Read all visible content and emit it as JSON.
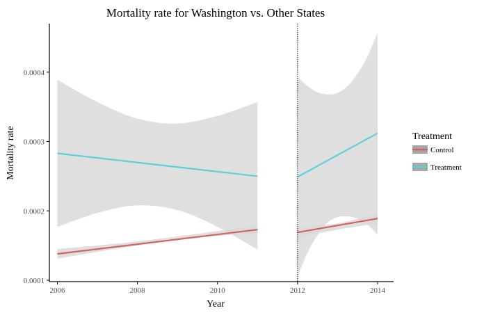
{
  "chart_data": {
    "type": "line",
    "title": "Mortality rate for Washington vs. Other States",
    "xlabel": "Year",
    "ylabel": "Mortality rate",
    "xlim": [
      2005.8,
      2014.4
    ],
    "ylim": [
      9.8e-05,
      0.00047
    ],
    "x_ticks": [
      2006,
      2008,
      2010,
      2012,
      2014
    ],
    "x_tick_labels": [
      "2006",
      "2008",
      "2010",
      "2012",
      "2014"
    ],
    "y_ticks": [
      0.0001,
      0.0002,
      0.0003,
      0.0004
    ],
    "y_tick_labels": [
      "0.0001",
      "0.0002",
      "0.0003",
      "0.0004"
    ],
    "vline_x": 2012,
    "grid": false,
    "legend": {
      "title": "Treatment",
      "position": "right",
      "entries": [
        "Control",
        "Treatment"
      ]
    },
    "series": [
      {
        "name": "Control",
        "color": "#d4635e",
        "segments": [
          {
            "x": [
              2006,
              2011
            ],
            "y": [
              0.000138,
              0.000173
            ],
            "band_x": [
              2006,
              2008,
              2010,
              2011
            ],
            "band_lower": [
              0.000131,
              0.00015,
              0.000164,
              0.000167
            ],
            "band_upper": [
              0.000145,
              0.000156,
              0.000171,
              0.000179
            ]
          },
          {
            "x": [
              2012,
              2014
            ],
            "y": [
              0.000169,
              0.000189
            ],
            "band_x": [
              2012,
              2013,
              2014
            ],
            "band_lower": [
              0.000162,
              0.000173,
              0.000182
            ],
            "band_upper": [
              0.000176,
              0.000182,
              0.000196
            ]
          }
        ]
      },
      {
        "name": "Treatment",
        "color": "#5ccfd8",
        "segments": [
          {
            "x": [
              2006,
              2011
            ],
            "y": [
              0.000283,
              0.00025
            ],
            "band_x": [
              2006,
              2007,
              2008,
              2009,
              2010,
              2011
            ],
            "band_lower": [
              0.000177,
              0.000197,
              0.000208,
              0.000201,
              0.000177,
              0.000144
            ],
            "band_upper": [
              0.000389,
              0.000357,
              0.000333,
              0.000326,
              0.000337,
              0.000357
            ]
          },
          {
            "x": [
              2012,
              2014
            ],
            "y": [
              0.000249,
              0.000312
            ],
            "band_x": [
              2012,
              2012.25,
              2012.5,
              2012.75,
              2013,
              2013.25,
              2013.5,
              2013.75,
              2014
            ],
            "band_lower": [
              0.000105,
              0.00014,
              0.000165,
              0.000183,
              0.000191,
              0.000192,
              0.000189,
              0.00018,
              0.000166
            ],
            "band_upper": [
              0.000393,
              0.00038,
              0.000371,
              0.000368,
              0.00037,
              0.00038,
              0.000398,
              0.000423,
              0.000457
            ]
          }
        ]
      }
    ]
  },
  "colors": {
    "band": "#d9d9d9",
    "axis": "#000000",
    "tick_text": "#4d4d4d",
    "legend_key_bg": "#a6a6a6"
  }
}
